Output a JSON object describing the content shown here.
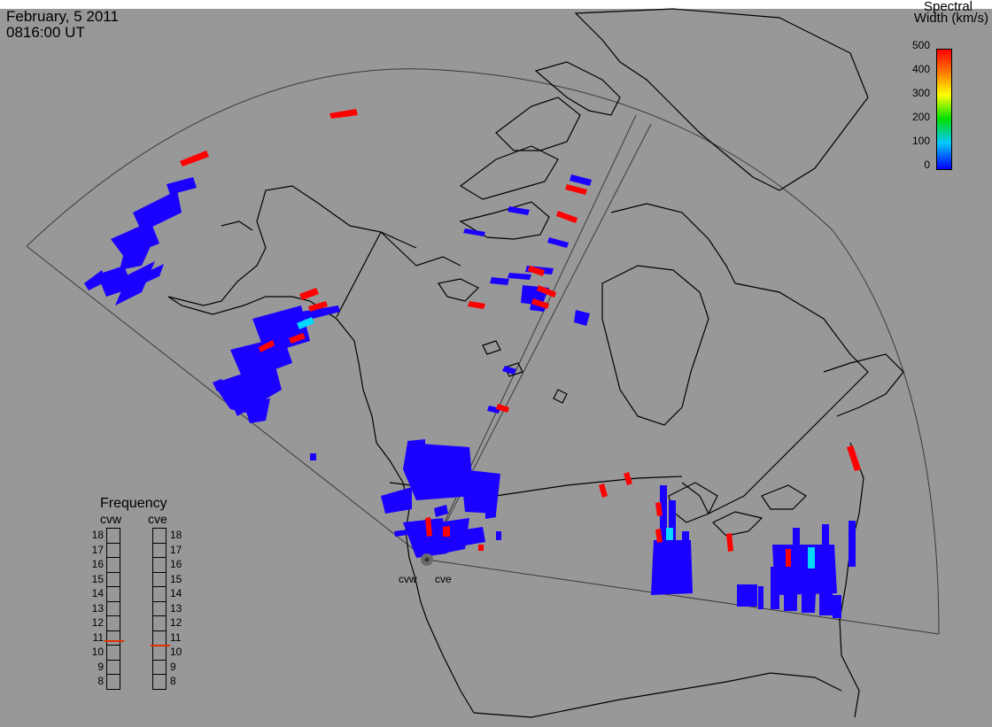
{
  "header": {
    "date": "February, 5 2011",
    "time": "0816:00 UT"
  },
  "colorbar": {
    "title_line1": "Spectral",
    "title_line2": "Width (km/s)",
    "ticks": [
      "500",
      "400",
      "300",
      "200",
      "100",
      "0"
    ],
    "colors": [
      "#ff0000",
      "#ff8000",
      "#ffff00",
      "#00e000",
      "#00c8ff",
      "#0000ff"
    ]
  },
  "frequency_panel": {
    "title": "Frequency",
    "radars": [
      "cvw",
      "cve"
    ],
    "scale": [
      "18",
      "17",
      "16",
      "15",
      "14",
      "13",
      "12",
      "11",
      "10",
      "9",
      "8"
    ],
    "cvw_value": 10.8,
    "cve_value": 10.5,
    "marker_color": "#e03000"
  },
  "map": {
    "background": "#989898",
    "radar_labels": {
      "west": "cvw",
      "east": "cve"
    },
    "scatter_color_low": "#1a00ff",
    "scatter_color_high": "#ff0000",
    "scatter_color_mid": "#00d8ff"
  }
}
